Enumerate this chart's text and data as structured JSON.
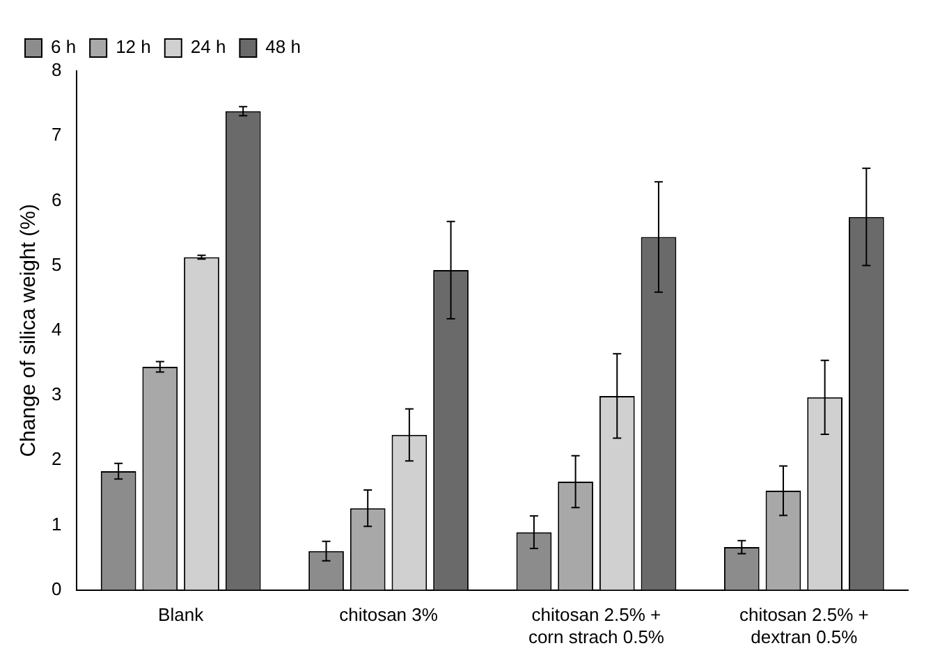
{
  "chart_data": {
    "type": "bar",
    "ylabel": "Change of silica weight (%)",
    "categories": [
      "Blank",
      "chitosan 3%",
      "chitosan 2.5% +\ncorn strach 0.5%",
      "chitosan 2.5% +\ndextran 0.5%"
    ],
    "series": [
      {
        "name": "6 h",
        "color": "#8c8c8c",
        "values": [
          1.83,
          0.6,
          0.89,
          0.66
        ],
        "errors": [
          0.12,
          0.15,
          0.25,
          0.1
        ]
      },
      {
        "name": "12 h",
        "color": "#a8a8a8",
        "values": [
          3.44,
          1.26,
          1.67,
          1.53
        ],
        "errors": [
          0.08,
          0.28,
          0.4,
          0.38
        ]
      },
      {
        "name": "24 h",
        "color": "#d0d0d0",
        "values": [
          5.13,
          2.39,
          2.99,
          2.97
        ],
        "errors": [
          0.03,
          0.4,
          0.65,
          0.57
        ]
      },
      {
        "name": "48 h",
        "color": "#6a6a6a",
        "values": [
          7.38,
          4.93,
          5.44,
          5.75
        ],
        "errors": [
          0.07,
          0.75,
          0.85,
          0.75
        ]
      }
    ],
    "ylim": [
      0,
      8
    ],
    "yticks": [
      0,
      1,
      2,
      3,
      4,
      5,
      6,
      7,
      8
    ],
    "grid": false,
    "legend": "top left"
  }
}
